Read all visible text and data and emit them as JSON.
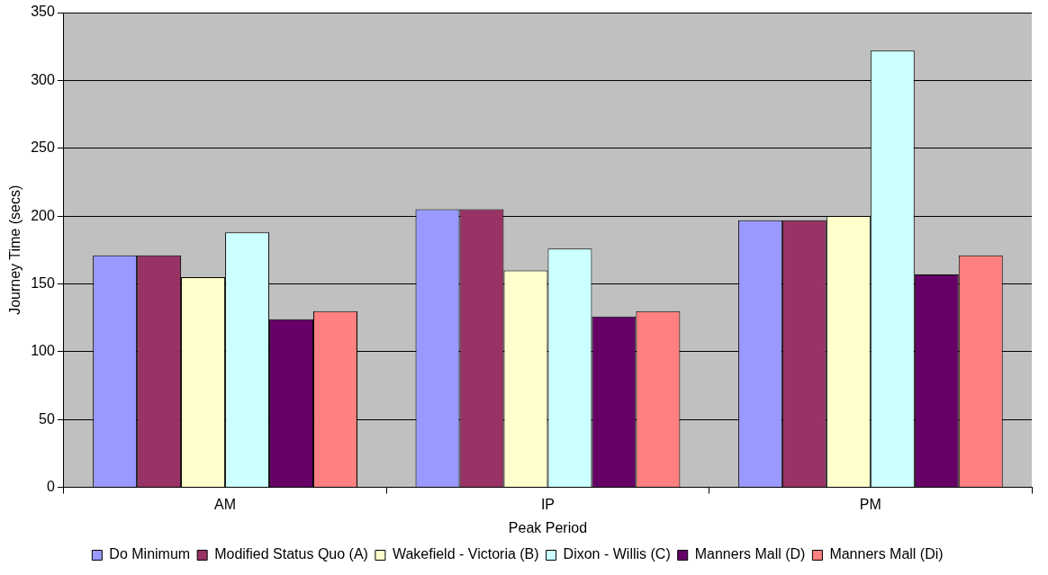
{
  "chart_data": {
    "type": "bar",
    "xlabel": "Peak Period",
    "ylabel": "Journey Time (secs)",
    "categories": [
      "AM",
      "IP",
      "PM"
    ],
    "series": [
      {
        "name": "Do Minimum",
        "color": "#9999ff",
        "values": [
          171,
          205,
          197
        ]
      },
      {
        "name": "Modified Status Quo (A)",
        "color": "#993366",
        "values": [
          171,
          205,
          197
        ]
      },
      {
        "name": "Wakefield - Victoria (B)",
        "color": "#ffffcc",
        "values": [
          155,
          160,
          200
        ]
      },
      {
        "name": "Dixon - Willis (C)",
        "color": "#ccffff",
        "values": [
          188,
          176,
          322
        ]
      },
      {
        "name": "Manners Mall (D)",
        "color": "#660066",
        "values": [
          124,
          126,
          157
        ]
      },
      {
        "name": "Manners Mall (Di)",
        "color": "#ff8080",
        "values": [
          130,
          130,
          171
        ]
      }
    ],
    "ylim": [
      0,
      350
    ],
    "yticks": [
      0,
      50,
      100,
      150,
      200,
      250,
      300,
      350
    ],
    "grid": "y",
    "legend": "bottom"
  }
}
